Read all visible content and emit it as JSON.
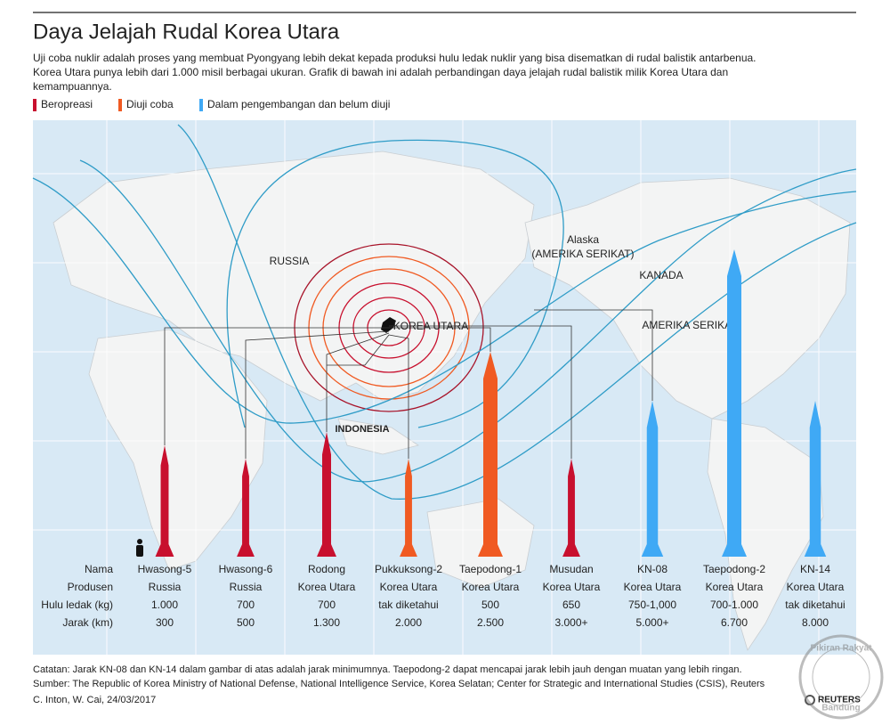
{
  "header": {
    "title": "Daya Jelajah Rudal Korea Utara",
    "description": [
      "Uji coba nuklir adalah proses yang membuat Pyongyang lebih dekat kepada produksi hulu ledak nuklir yang bisa disematkan di rudal balistik antarbenua.",
      "Korea Utara punya lebih dari 1.000 misil berbagai ukuran. Grafik di bawah ini adalah perbandingan daya jelajah rudal balistik milik Korea Utara dan",
      "kemampuannya."
    ]
  },
  "legend": [
    "Beropreasi",
    "Diuji coba",
    "Dalam pengembangan dan belum diuji"
  ],
  "map_labels": [
    "RUSSIA",
    "KOREA UTARA",
    "INDONESIA",
    "Alaska",
    "(AMERIKA SERIKAT)",
    "KANADA",
    "AMERIKA SERIKAT"
  ],
  "table": {
    "row_labels": [
      "Nama",
      "Produsen",
      "Hulu ledak (kg)",
      "Jarak (km)"
    ],
    "missiles": [
      {
        "name": "Hwasong-5",
        "producer": "Russia",
        "payload": "1.000",
        "range": "300"
      },
      {
        "name": "Hwasong-6",
        "producer": "Russia",
        "payload": "700",
        "range": "500"
      },
      {
        "name": "Rodong",
        "producer": "Korea Utara",
        "payload": "700",
        "range": "1.300"
      },
      {
        "name": "Pukkuksong-2",
        "producer": "Korea Utara",
        "payload": "tak diketahui",
        "range": "2.000"
      },
      {
        "name": "Taepodong-1",
        "producer": "Korea Utara",
        "payload": "500",
        "range": "2.500"
      },
      {
        "name": "Musudan",
        "producer": "Korea Utara",
        "payload": "650",
        "range": "3.000+"
      },
      {
        "name": "KN-08",
        "producer": "Korea Utara",
        "payload": "750-1,000",
        "range": "5.000+"
      },
      {
        "name": "Taepodong-2",
        "producer": "Korea Utara",
        "payload": "700-1.000",
        "range": "6.700"
      },
      {
        "name": "KN-14",
        "producer": "Korea Utara",
        "payload": "tak diketahui",
        "range": "8.000"
      }
    ]
  },
  "footer": {
    "note": "Catatan: Jarak KN-08 dan KN-14 dalam gambar di atas adalah jarak minimumnya. Taepodong-2 dapat mencapai jarak lebih jauh dengan muatan yang lebih ringan.",
    "source": "Sumber: The Republic of Korea Ministry of National Defense, National Intelligence Service, Korea Selatan; Center for Strategic and International Studies (CSIS), Reuters",
    "credit": "C. Inton,  W. Cai, 24/03/2017"
  },
  "watermark": {
    "name": "Pikiran Rakyat",
    "city": "Bandung"
  },
  "logo": "REUTERS"
}
